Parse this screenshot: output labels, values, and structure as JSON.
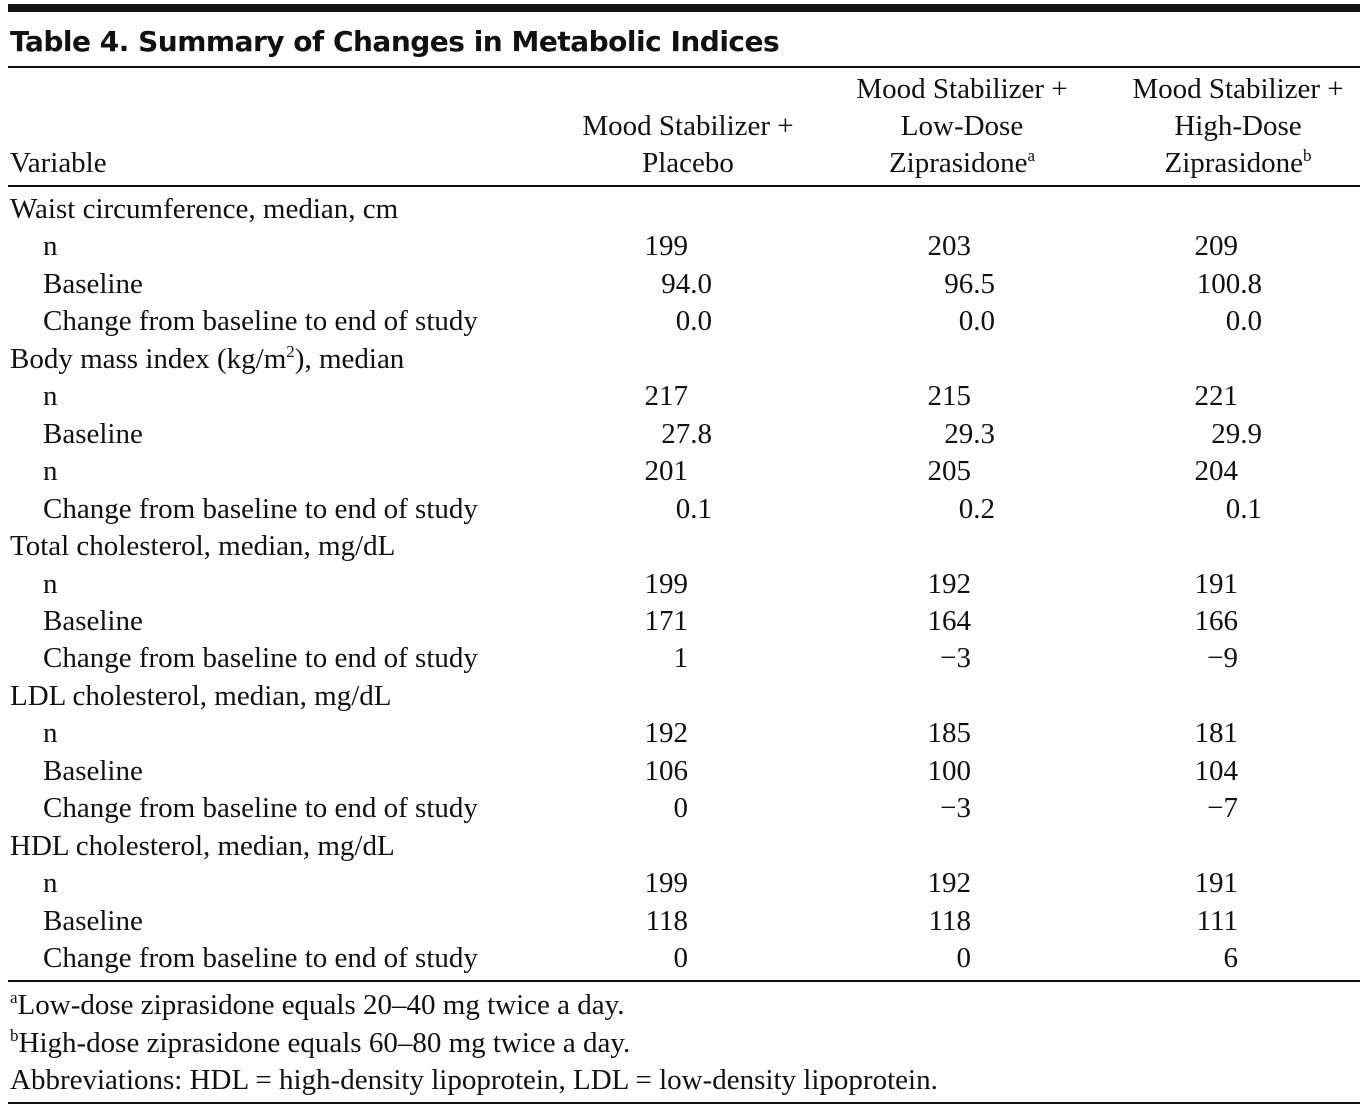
{
  "title": "Table 4. Summary of Changes in Metabolic Indices",
  "table": {
    "header": [
      {
        "lines": [
          "Variable"
        ]
      },
      {
        "lines": [
          "Mood Stabilizer +",
          "Placebo"
        ]
      },
      {
        "lines": [
          "Mood Stabilizer +",
          "Low-Dose",
          "Ziprasidone"
        ],
        "sup": "a"
      },
      {
        "lines": [
          "Mood Stabilizer +",
          "High-Dose",
          "Ziprasidone"
        ],
        "sup": "b"
      }
    ],
    "sections": [
      {
        "label": "Waist circumference, median, cm",
        "rows": [
          {
            "label": "n",
            "values": [
              "199",
              "203",
              "209"
            ]
          },
          {
            "label": "Baseline",
            "values": [
              "94.0",
              "96.5",
              "100.8"
            ]
          },
          {
            "label": "Change from baseline to end of study",
            "values": [
              "0.0",
              "0.0",
              "0.0"
            ]
          }
        ]
      },
      {
        "label": {
          "text": "Body mass index (kg/m",
          "sup": "2",
          "tail": "), median"
        },
        "rows": [
          {
            "label": "n",
            "values": [
              "217",
              "215",
              "221"
            ]
          },
          {
            "label": "Baseline",
            "values": [
              "27.8",
              "29.3",
              "29.9"
            ]
          },
          {
            "label": "n",
            "values": [
              "201",
              "205",
              "204"
            ]
          },
          {
            "label": "Change from baseline to end of study",
            "values": [
              "0.1",
              "0.2",
              "0.1"
            ]
          }
        ]
      },
      {
        "label": "Total cholesterol, median, mg/dL",
        "rows": [
          {
            "label": "n",
            "values": [
              "199",
              "192",
              "191"
            ]
          },
          {
            "label": "Baseline",
            "values": [
              "171",
              "164",
              "166"
            ]
          },
          {
            "label": "Change from baseline to end of study",
            "values": [
              "1",
              "−3",
              "−9"
            ]
          }
        ]
      },
      {
        "label": "LDL cholesterol, median, mg/dL",
        "rows": [
          {
            "label": "n",
            "values": [
              "192",
              "185",
              "181"
            ]
          },
          {
            "label": "Baseline",
            "values": [
              "106",
              "100",
              "104"
            ]
          },
          {
            "label": "Change from baseline to end of study",
            "values": [
              "0",
              "−3",
              "−7"
            ]
          }
        ]
      },
      {
        "label": "HDL cholesterol, median, mg/dL",
        "rows": [
          {
            "label": "n",
            "values": [
              "199",
              "192",
              "191"
            ]
          },
          {
            "label": "Baseline",
            "values": [
              "118",
              "118",
              "111"
            ]
          },
          {
            "label": "Change from baseline to end of study",
            "values": [
              "0",
              "0",
              "6"
            ]
          }
        ]
      }
    ]
  },
  "footnotes": [
    {
      "mark": "a",
      "text": "Low-dose ziprasidone equals 20–40 mg twice a day."
    },
    {
      "mark": "b",
      "text": "High-dose ziprasidone equals 60–80 mg twice a day."
    }
  ],
  "abbreviations": "Abbreviations: HDL = high-density lipoprotein, LDL = low-density lipoprotein."
}
